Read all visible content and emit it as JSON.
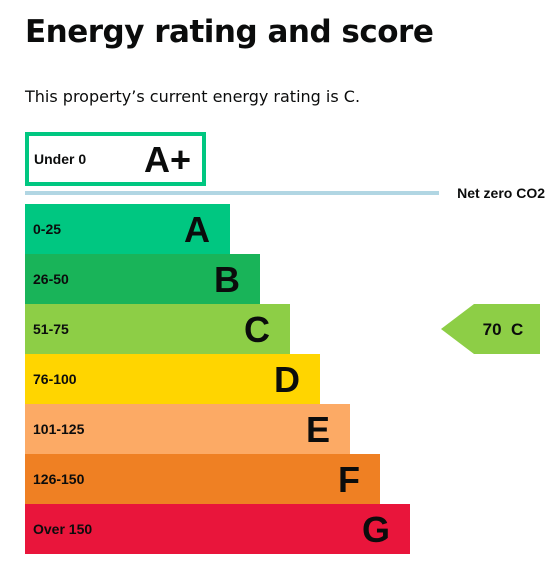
{
  "header": {
    "title": "Energy rating and score",
    "summary": "This property’s current energy rating is C."
  },
  "chart_data": {
    "type": "bar",
    "title": "",
    "xlabel": "",
    "ylabel": "",
    "categories": [
      "A+",
      "A",
      "B",
      "C",
      "D",
      "E",
      "F",
      "G"
    ],
    "ranges": [
      "Under 0",
      "0-25",
      "26-50",
      "51-75",
      "76-100",
      "101-125",
      "126-150",
      "Over 150"
    ],
    "colors": [
      "#00c781",
      "#00c781",
      "#19b459",
      "#8dce46",
      "#ffd500",
      "#fcaa65",
      "#ef8023",
      "#e9153b"
    ],
    "text_colors": [
      "#0b0c0c",
      "#0b0c0c",
      "#0b0c0c",
      "#0b0c0c",
      "#0b0c0c",
      "#0b0c0c",
      "#0b0c0c",
      "#0b0c0c"
    ],
    "outlined": [
      true,
      false,
      false,
      false,
      false,
      false,
      false,
      false
    ],
    "net_zero": {
      "label": "Net zero CO2",
      "color": "#b1d6e3"
    },
    "current": {
      "score": 70,
      "band": "C",
      "label": "70  C",
      "color": "#8dce46"
    }
  }
}
